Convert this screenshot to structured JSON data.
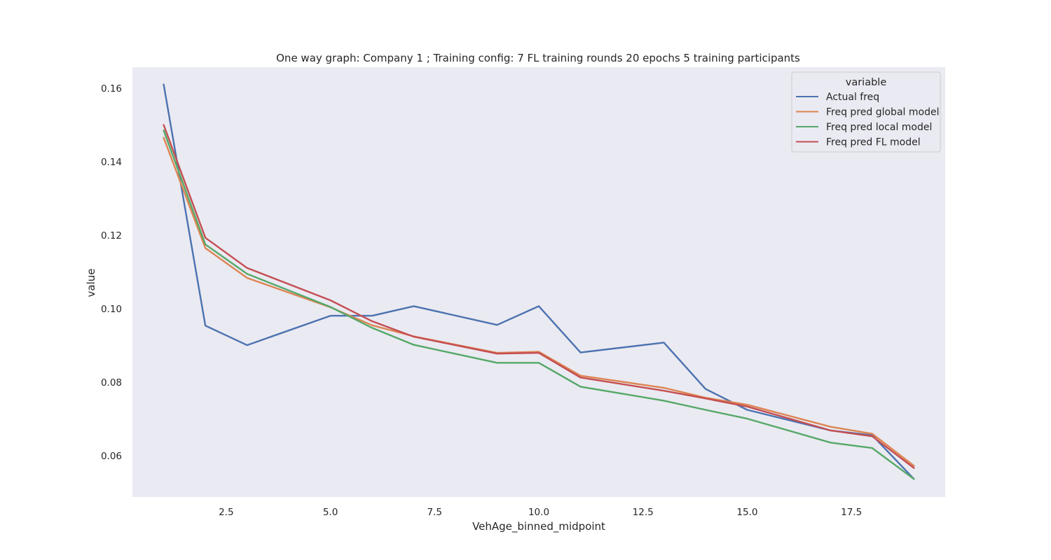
{
  "chart_data": {
    "type": "line",
    "title": "One way graph: Company 1 ; Training config: 7 FL training rounds 20 epochs 5 training participants",
    "xlabel": "VehAge_binned_midpoint",
    "ylabel": "value",
    "xlim": [
      0.25,
      19.75
    ],
    "ylim": [
      0.0488,
      0.1657
    ],
    "xticks": [
      2.5,
      5.0,
      7.5,
      10.0,
      12.5,
      15.0,
      17.5
    ],
    "xtick_labels": [
      "2.5",
      "5.0",
      "7.5",
      "10.0",
      "12.5",
      "15.0",
      "17.5"
    ],
    "yticks": [
      0.06,
      0.08,
      0.1,
      0.12,
      0.14,
      0.16
    ],
    "ytick_labels": [
      "0.06",
      "0.08",
      "0.10",
      "0.12",
      "0.14",
      "0.16"
    ],
    "grid": false,
    "background": "#eaeaf2",
    "legend": {
      "title": "variable",
      "placement": "top-right"
    },
    "x": [
      1,
      2,
      3,
      5,
      6,
      7,
      9,
      10,
      11,
      13,
      14,
      15,
      17,
      18,
      19
    ],
    "series": [
      {
        "name": "Actual freq",
        "color": "#4c72b0",
        "values": [
          0.161,
          0.0954,
          0.0901,
          0.0981,
          0.0981,
          0.1007,
          0.0956,
          0.1007,
          0.0881,
          0.0908,
          0.0782,
          0.0725,
          0.0669,
          0.0656,
          0.0537
        ]
      },
      {
        "name": "Freq pred global model",
        "color": "#dd8452",
        "values": [
          0.1465,
          0.1165,
          0.1084,
          0.1004,
          0.0955,
          0.0925,
          0.088,
          0.0883,
          0.0818,
          0.0785,
          0.0758,
          0.0739,
          0.0679,
          0.066,
          0.0573
        ]
      },
      {
        "name": "Freq pred local model",
        "color": "#55a868",
        "values": [
          0.1485,
          0.1175,
          0.1095,
          0.1005,
          0.0948,
          0.0902,
          0.0853,
          0.0853,
          0.0788,
          0.075,
          0.0725,
          0.0701,
          0.0636,
          0.0621,
          0.0537
        ]
      },
      {
        "name": "Freq pred FL model",
        "color": "#c44e52",
        "values": [
          0.15,
          0.1193,
          0.1111,
          0.1023,
          0.0966,
          0.0924,
          0.0878,
          0.088,
          0.0813,
          0.0777,
          0.0756,
          0.0734,
          0.0669,
          0.0653,
          0.0567
        ]
      }
    ]
  }
}
